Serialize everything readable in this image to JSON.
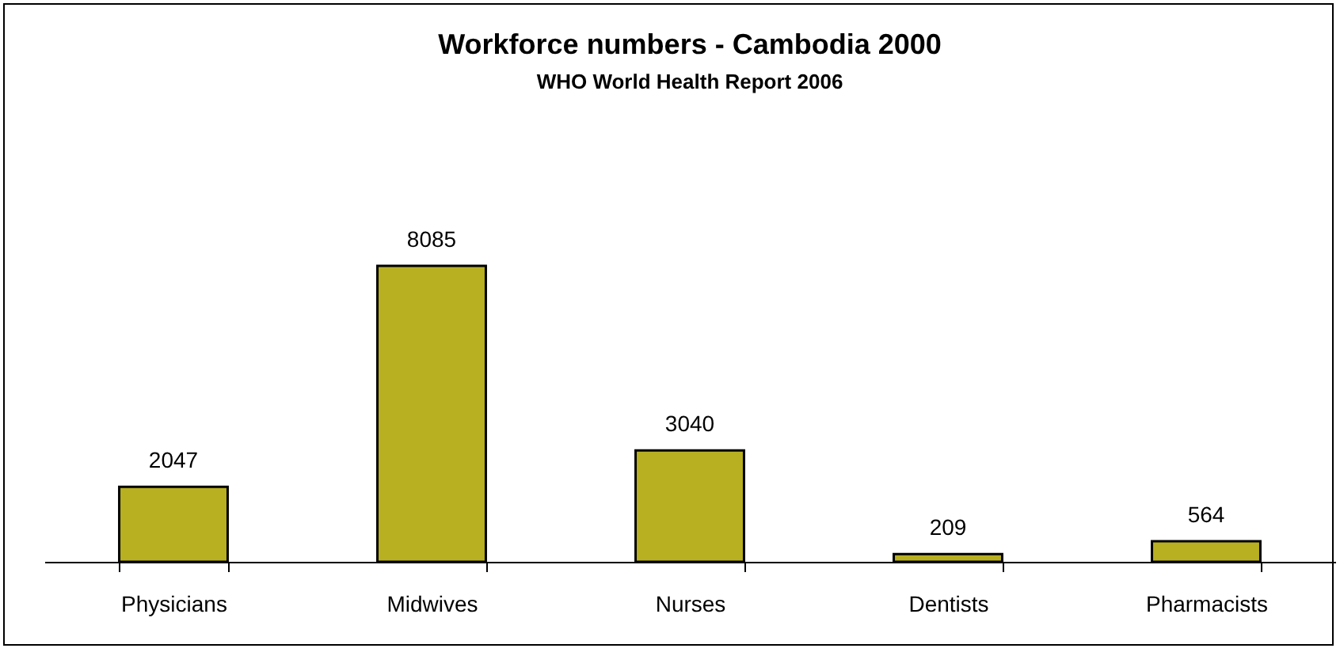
{
  "chart_data": {
    "type": "bar",
    "title": "Workforce numbers - Cambodia 2000",
    "subtitle": "WHO World Health Report 2006",
    "categories": [
      "Physicians",
      "Midwives",
      "Nurses",
      "Dentists",
      "Pharmacists"
    ],
    "values": [
      2047,
      8085,
      3040,
      209,
      564
    ],
    "color": "#b8b020",
    "data_labels": true,
    "grid": false
  }
}
